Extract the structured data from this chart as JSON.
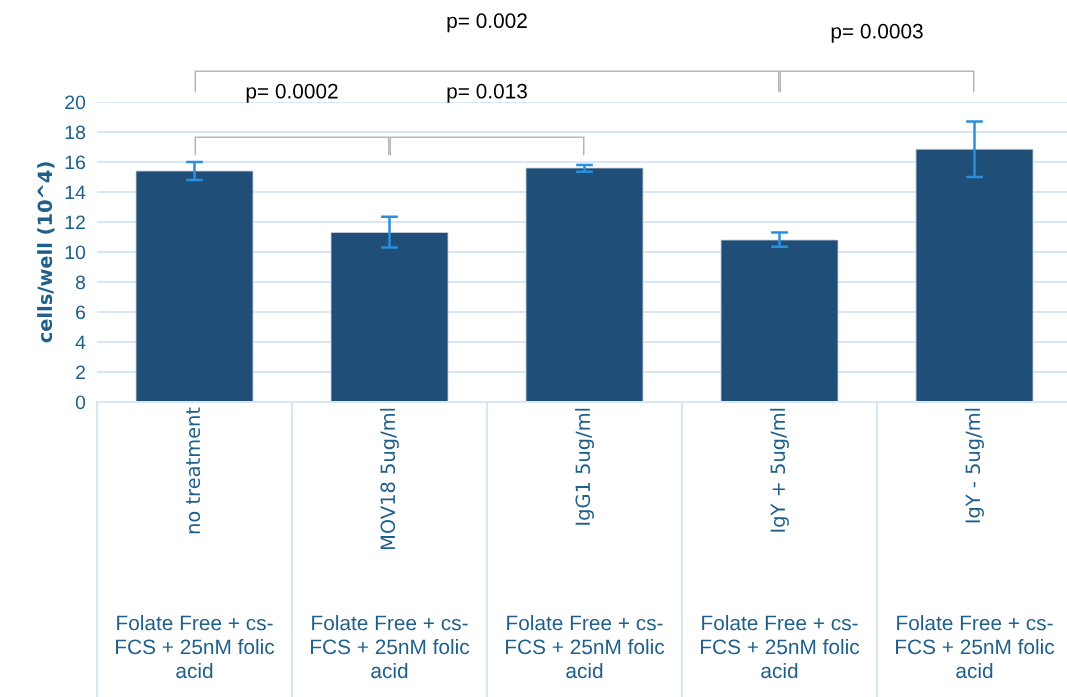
{
  "chart_data": {
    "type": "bar",
    "ylabel": "cells/well (10^4)",
    "categories": [
      "no treatment",
      "MOV18 5ug/ml",
      "IgG1 5ug/ml",
      "IgY + 5ug/ml",
      "IgY - 5ug/ml"
    ],
    "values": [
      15.4,
      11.3,
      15.6,
      10.8,
      16.85
    ],
    "errors": [
      [
        14.8,
        16.0
      ],
      [
        10.3,
        12.35
      ],
      [
        15.35,
        15.8
      ],
      [
        10.35,
        11.3
      ],
      [
        15.0,
        18.7
      ]
    ],
    "color": "#1f4e79",
    "ylim": [
      0,
      20
    ],
    "yticks": [
      0,
      2,
      4,
      6,
      8,
      10,
      12,
      14,
      16,
      18,
      20
    ],
    "grid": "y",
    "legend": false,
    "annotations": [
      "p= 0.002",
      "p= 0.0003",
      "p= 0.0002",
      "p= 0.013",
      "Folate Free + cs-\nFCS + 25nM folic\nacid",
      "Folate Free + cs-\nFCS + 25nM folic\nacid",
      "Folate Free + cs-\nFCS + 25nM folic\nacid",
      "Folate Free + cs-\nFCS + 25nM folic\nacid",
      "Folate Free + cs-\nFCS + 25nM folic\nacid"
    ]
  }
}
